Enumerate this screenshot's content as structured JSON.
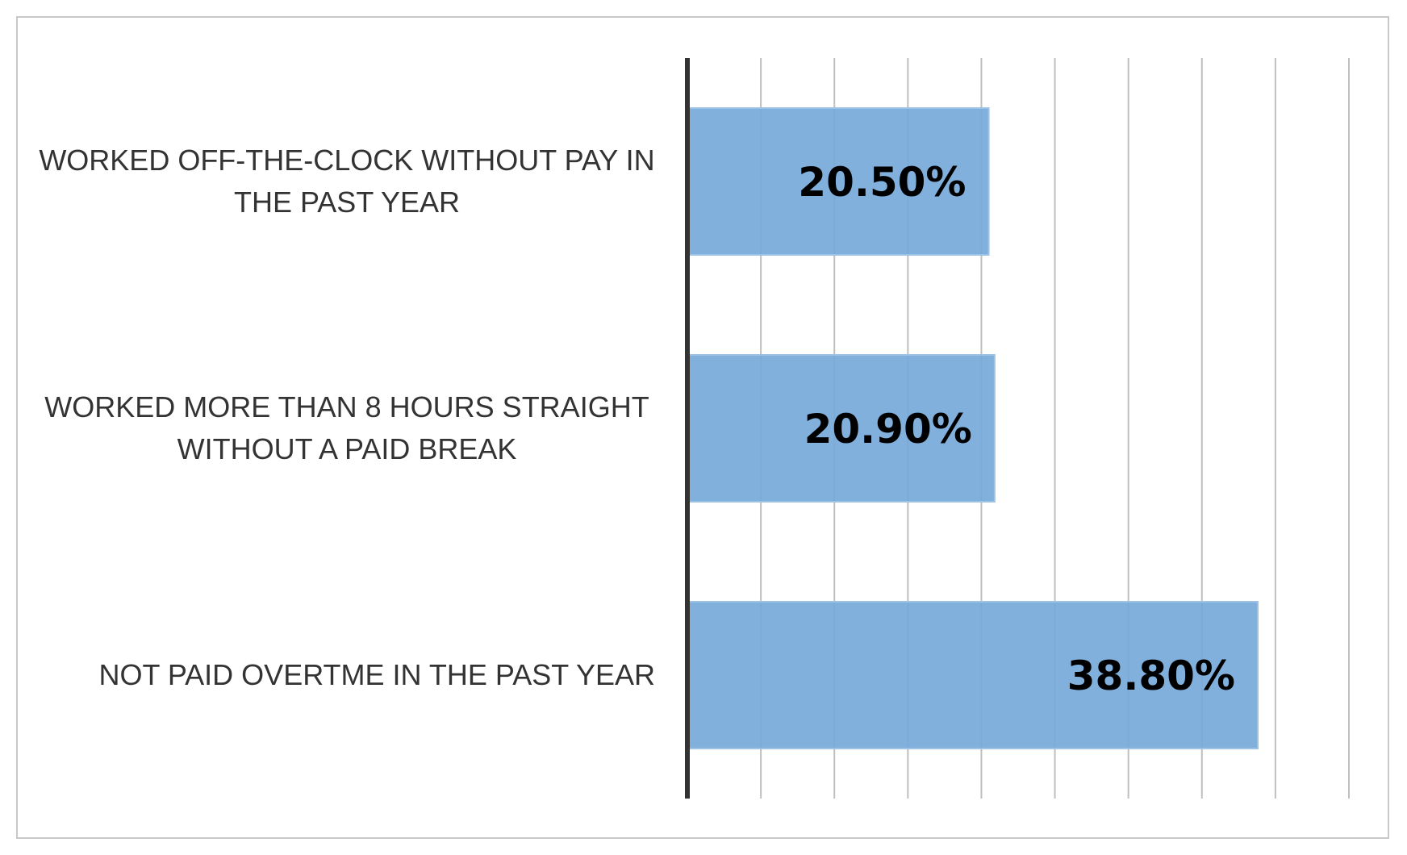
{
  "chart_data": {
    "type": "bar",
    "orientation": "horizontal",
    "categories": [
      [
        "WORKED OFF-THE-CLOCK WITHOUT PAY IN",
        "THE PAST YEAR"
      ],
      [
        "WORKED MORE THAN 8 HOURS STRAIGHT",
        "WITHOUT A PAID BREAK"
      ],
      [
        "NOT PAID OVERTME IN THE PAST YEAR"
      ]
    ],
    "values": [
      20.5,
      20.9,
      38.8
    ],
    "data_labels": [
      "20.50%",
      "20.90%",
      "38.80%"
    ],
    "xlim": [
      0,
      45
    ],
    "x_grid_step": 5,
    "grid": true,
    "legend": "none",
    "title": "",
    "xlabel": "",
    "ylabel": "",
    "bar_color": "#76a9da",
    "bar_edge_color": "#9cc3e6",
    "axis_color": "#333333",
    "grid_color": "#bfbfbf"
  }
}
